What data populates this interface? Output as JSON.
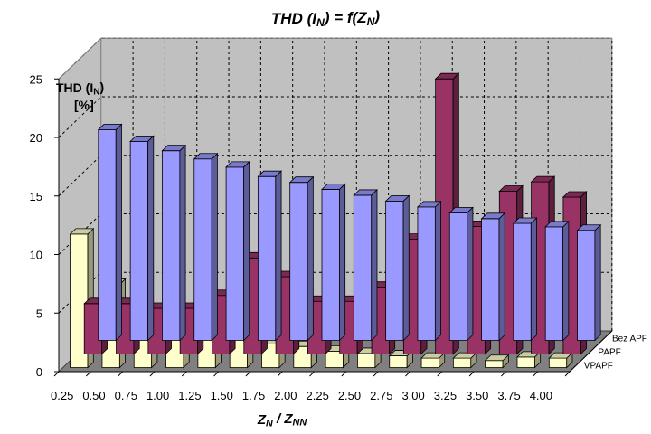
{
  "chart_data": {
    "type": "bar",
    "title_parts": [
      {
        "text": "THD (",
        "sub": false
      },
      {
        "text": "I",
        "sub": false
      },
      {
        "text": "N",
        "sub": true
      },
      {
        "text": ") = f(",
        "sub": false
      },
      {
        "text": "Z",
        "sub": false
      },
      {
        "text": "N",
        "sub": true
      },
      {
        "text": ")",
        "sub": false
      }
    ],
    "ylabel_line1": [
      {
        "text": "THD (",
        "sub": false
      },
      {
        "text": "I",
        "sub": false
      },
      {
        "text": "N",
        "sub": true
      },
      {
        "text": ")",
        "sub": false
      }
    ],
    "ylabel_line2": "[%]",
    "xlabel_parts": [
      {
        "text": "Z",
        "sub": false
      },
      {
        "text": "N",
        "sub": true
      },
      {
        "text": " / Z",
        "sub": false
      },
      {
        "text": "NN",
        "sub": true
      }
    ],
    "categories": [
      "0.25",
      "0.50",
      "0.75",
      "1.00",
      "1.25",
      "1.50",
      "1.75",
      "2.00",
      "2.25",
      "2.50",
      "2.75",
      "3.00",
      "3.25",
      "3.50",
      "3.75",
      "4.00"
    ],
    "y_ticks": [
      "0",
      "5",
      "10",
      "15",
      "20",
      "25"
    ],
    "ylim": [
      0,
      25
    ],
    "grid": true,
    "series": [
      {
        "name": "Bez APF",
        "color": "#9999ff",
        "values": [
          18.0,
          17.0,
          16.2,
          15.5,
          14.8,
          14.0,
          13.5,
          12.9,
          12.4,
          11.9,
          11.4,
          10.9,
          10.4,
          10.0,
          9.7,
          9.4
        ]
      },
      {
        "name": "PAPF",
        "color": "#993366",
        "values": [
          4.3,
          4.3,
          3.9,
          3.9,
          5.0,
          8.2,
          6.6,
          4.5,
          4.5,
          5.7,
          9.8,
          23.5,
          10.9,
          13.9,
          14.7,
          13.4
        ]
      },
      {
        "name": "VPAPF",
        "color": "#ffffcc",
        "values": [
          11.4,
          7.1,
          5.0,
          3.8,
          3.0,
          2.4,
          2.0,
          1.8,
          1.4,
          1.2,
          1.0,
          0.8,
          0.8,
          0.6,
          0.9,
          0.8
        ]
      }
    ]
  }
}
